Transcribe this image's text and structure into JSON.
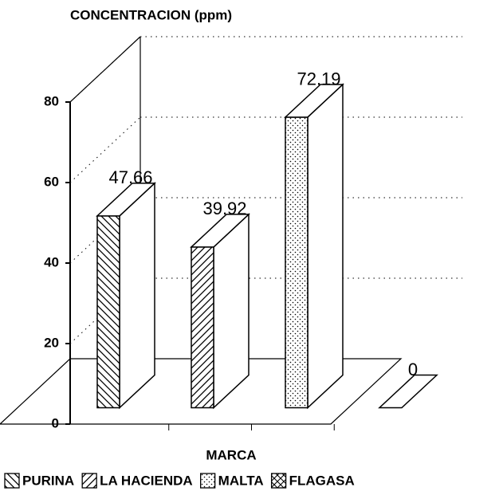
{
  "chart_data": {
    "type": "bar3d",
    "y_label": "CONCENTRACION (ppm)",
    "x_label": "MARCA",
    "series": [
      {
        "name": "PURINA",
        "values": [
          47.66
        ],
        "pattern": "diag-back",
        "color": "#000000"
      },
      {
        "name": "LA HACIENDA",
        "values": [
          39.92
        ],
        "pattern": "diag-fwd",
        "color": "#000000"
      },
      {
        "name": "MALTA",
        "values": [
          72.19
        ],
        "pattern": "dots",
        "color": "#000000"
      },
      {
        "name": "FLAGASA",
        "values": [
          0
        ],
        "pattern": "cross",
        "color": "#000000"
      }
    ],
    "ylim": [
      0,
      80
    ],
    "yticks": [
      0,
      20,
      40,
      60,
      80
    ],
    "grid": true,
    "legend": "bottom"
  }
}
